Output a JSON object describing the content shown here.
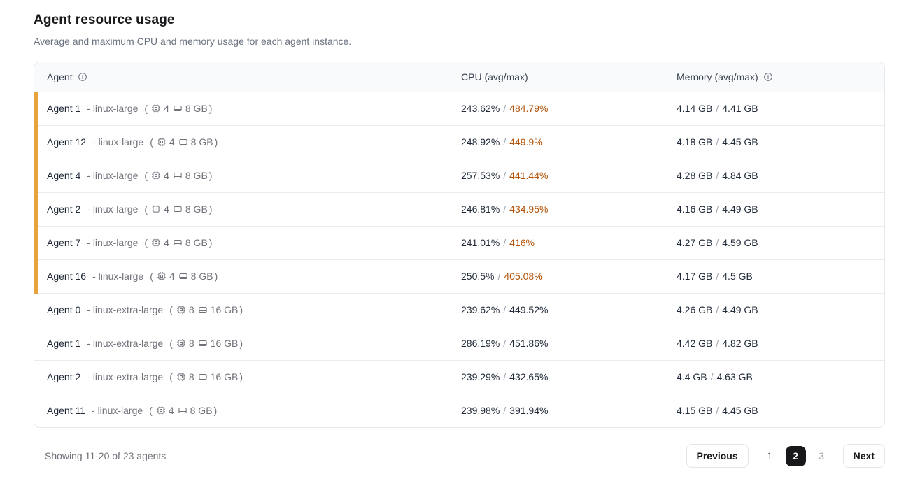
{
  "page": {
    "title": "Agent resource usage",
    "subtitle": "Average and maximum CPU and memory usage for each agent instance."
  },
  "table": {
    "columns": [
      {
        "label": "Agent",
        "info_icon": true
      },
      {
        "label": "CPU (avg/max)",
        "info_icon": false
      },
      {
        "label": "Memory (avg/max)",
        "info_icon": true
      }
    ],
    "spec_open": "(",
    "spec_close": ")",
    "value_separator": "/",
    "rows": [
      {
        "agent": "Agent 1",
        "machine": "- linux-large",
        "cores": "4",
        "ram": "8 GB",
        "cpu_avg": "243.62%",
        "cpu_max": "484.79%",
        "mem_avg": "4.14 GB",
        "mem_max": "4.41 GB",
        "flagged": true
      },
      {
        "agent": "Agent 12",
        "machine": "- linux-large",
        "cores": "4",
        "ram": "8 GB",
        "cpu_avg": "248.92%",
        "cpu_max": "449.9%",
        "mem_avg": "4.18 GB",
        "mem_max": "4.45 GB",
        "flagged": true
      },
      {
        "agent": "Agent 4",
        "machine": "- linux-large",
        "cores": "4",
        "ram": "8 GB",
        "cpu_avg": "257.53%",
        "cpu_max": "441.44%",
        "mem_avg": "4.28 GB",
        "mem_max": "4.84 GB",
        "flagged": true
      },
      {
        "agent": "Agent 2",
        "machine": "- linux-large",
        "cores": "4",
        "ram": "8 GB",
        "cpu_avg": "246.81%",
        "cpu_max": "434.95%",
        "mem_avg": "4.16 GB",
        "mem_max": "4.49 GB",
        "flagged": true
      },
      {
        "agent": "Agent 7",
        "machine": "- linux-large",
        "cores": "4",
        "ram": "8 GB",
        "cpu_avg": "241.01%",
        "cpu_max": "416%",
        "mem_avg": "4.27 GB",
        "mem_max": "4.59 GB",
        "flagged": true
      },
      {
        "agent": "Agent 16",
        "machine": "- linux-large",
        "cores": "4",
        "ram": "8 GB",
        "cpu_avg": "250.5%",
        "cpu_max": "405.08%",
        "mem_avg": "4.17 GB",
        "mem_max": "4.5 GB",
        "flagged": true
      },
      {
        "agent": "Agent 0",
        "machine": "- linux-extra-large",
        "cores": "8",
        "ram": "16 GB",
        "cpu_avg": "239.62%",
        "cpu_max": "449.52%",
        "mem_avg": "4.26 GB",
        "mem_max": "4.49 GB",
        "flagged": false
      },
      {
        "agent": "Agent 1",
        "machine": "- linux-extra-large",
        "cores": "8",
        "ram": "16 GB",
        "cpu_avg": "286.19%",
        "cpu_max": "451.86%",
        "mem_avg": "4.42 GB",
        "mem_max": "4.82 GB",
        "flagged": false
      },
      {
        "agent": "Agent 2",
        "machine": "- linux-extra-large",
        "cores": "8",
        "ram": "16 GB",
        "cpu_avg": "239.29%",
        "cpu_max": "432.65%",
        "mem_avg": "4.4 GB",
        "mem_max": "4.63 GB",
        "flagged": false
      },
      {
        "agent": "Agent 11",
        "machine": "- linux-large",
        "cores": "4",
        "ram": "8 GB",
        "cpu_avg": "239.98%",
        "cpu_max": "391.94%",
        "mem_avg": "4.15 GB",
        "mem_max": "4.45 GB",
        "flagged": false
      }
    ],
    "icons": [
      "info-icon",
      "cpu-icon",
      "ram-icon"
    ]
  },
  "footer": {
    "showing_text": "Showing 11-20 of 23 agents",
    "pagination": {
      "previous_label": "Previous",
      "pages": [
        {
          "label": "1",
          "state": "default"
        },
        {
          "label": "2",
          "state": "active"
        },
        {
          "label": "3",
          "state": "muted"
        }
      ],
      "next_label": "Next"
    }
  },
  "colors": {
    "warning_text": "#b45309",
    "warning_bar": "#e8a33d",
    "active_page_bg": "#18181b"
  }
}
